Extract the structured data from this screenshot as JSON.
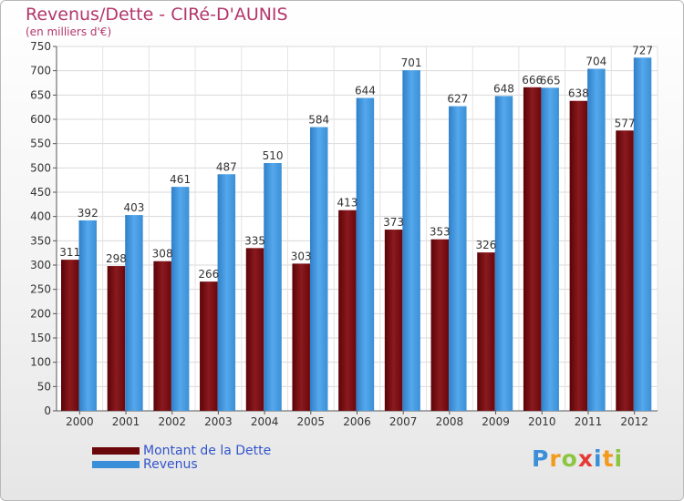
{
  "title": "Revenus/Dette - CIRé-D'AUNIS",
  "subtitle": "(en milliers d'€)",
  "colors": {
    "debt": "#7b0f12",
    "revenue": "#3a8fd8",
    "title": "#b3366b",
    "legend_text": "#3355cc"
  },
  "legend": {
    "debt_label": "Montant de la Dette",
    "revenue_label": "Revenus"
  },
  "logo": {
    "text": "Proxiti"
  },
  "chart_data": {
    "type": "bar",
    "title": "Revenus/Dette - CIRé-D'AUNIS",
    "ylabel": "(en milliers d'€)",
    "xlabel": "",
    "ylim": [
      0,
      750
    ],
    "ytick_step": 50,
    "grid": true,
    "categories": [
      "2000",
      "2001",
      "2002",
      "2003",
      "2004",
      "2005",
      "2006",
      "2007",
      "2008",
      "2009",
      "2010",
      "2011",
      "2012"
    ],
    "series": [
      {
        "name": "Montant de la Dette",
        "values": [
          311,
          298,
          308,
          266,
          335,
          303,
          413,
          373,
          353,
          326,
          666,
          638,
          577
        ]
      },
      {
        "name": "Revenus",
        "values": [
          392,
          403,
          461,
          487,
          510,
          584,
          644,
          701,
          627,
          648,
          665,
          704,
          727
        ]
      }
    ]
  }
}
